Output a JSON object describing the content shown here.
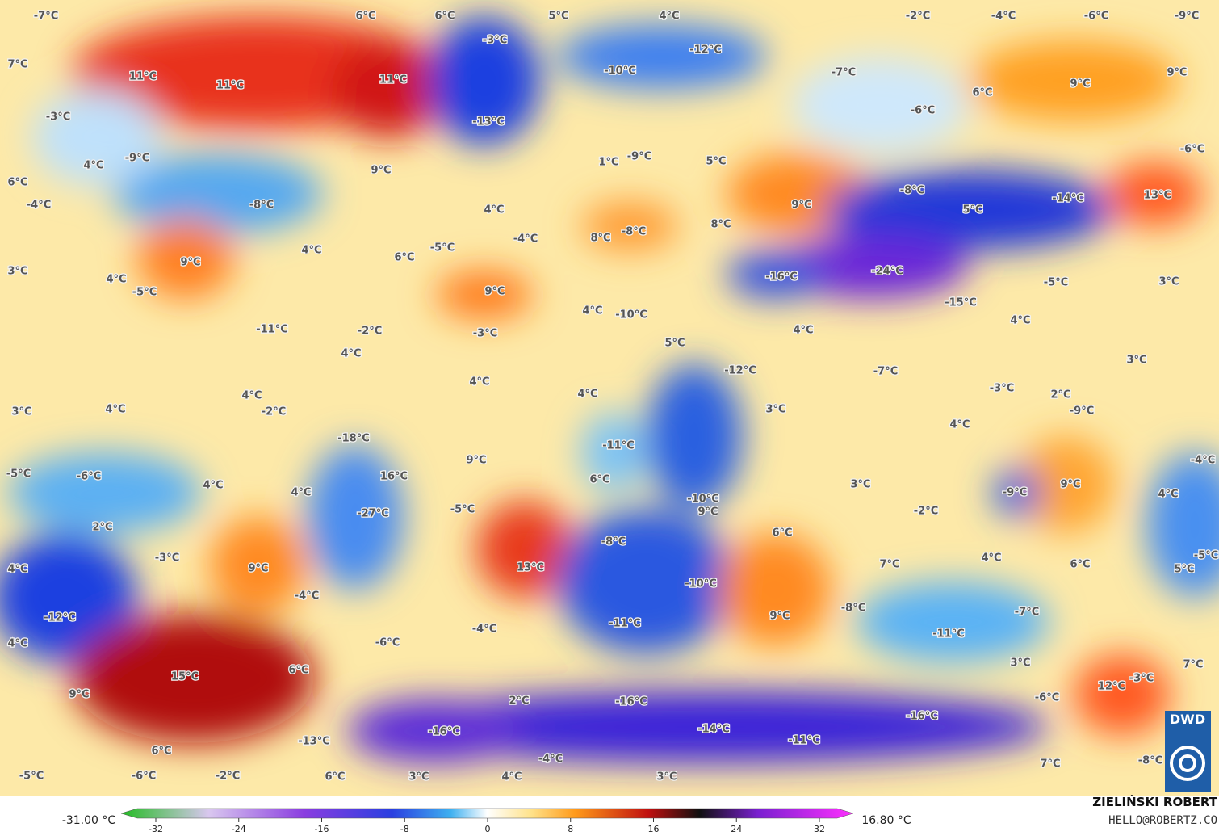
{
  "map": {
    "labels": [
      "-7°C",
      "6°C",
      "6°C",
      "5°C",
      "4°C",
      "-2°C",
      "-4°C",
      "-6°C",
      "-9°C",
      "-3°C",
      "-12°C",
      "7°C",
      "11°C",
      "11°C",
      "11°C",
      "-10°C",
      "-7°C",
      "9°C",
      "9°C",
      "6°C",
      "-6°C",
      "-3°C",
      "-13°C",
      "-9°C",
      "4°C",
      "1°C",
      "-9°C",
      "5°C",
      "-6°C",
      "6°C",
      "9°C",
      "-4°C",
      "-8°C",
      "4°C",
      "-8°C",
      "-14°C",
      "13°C",
      "9°C",
      "5°C",
      "8°C",
      "-4°C",
      "4°C",
      "-5°C",
      "6°C",
      "8°C",
      "-8°C",
      "3°C",
      "9°C",
      "4°C",
      "-5°C",
      "9°C",
      "-16°C",
      "-24°C",
      "-5°C",
      "3°C",
      "-15°C",
      "4°C",
      "-10°C",
      "4°C",
      "-11°C",
      "-2°C",
      "-3°C",
      "4°C",
      "5°C",
      "-12°C",
      "4°C",
      "3°C",
      "-7°C",
      "-3°C",
      "4°C",
      "4°C",
      "4°C",
      "2°C",
      "-9°C",
      "3°C",
      "4°C",
      "-2°C",
      "3°C",
      "4°C",
      "-18°C",
      "-11°C",
      "9°C",
      "-5°C",
      "-6°C",
      "16°C",
      "6°C",
      "4°C",
      "4°C",
      "3°C",
      "-9°C",
      "9°C",
      "4°C",
      "-4°C",
      "-10°C",
      "9°C",
      "-5°C",
      "-27°C",
      "-2°C",
      "2°C",
      "6°C",
      "-8°C",
      "-3°C",
      "4°C",
      "7°C",
      "6°C",
      "-5°C",
      "5°C",
      "4°C",
      "9°C",
      "13°C",
      "-10°C",
      "-4°C",
      "-8°C",
      "-7°C",
      "9°C",
      "-12°C",
      "-11°C",
      "-4°C",
      "-11°C",
      "-6°C",
      "4°C",
      "3°C",
      "7°C",
      "6°C",
      "15°C",
      "-3°C",
      "12°C",
      "9°C",
      "2°C",
      "-16°C",
      "-6°C",
      "-16°C",
      "-14°C",
      "-16°C",
      "-11°C",
      "-13°C",
      "6°C",
      "-4°C",
      "7°C",
      "-8°C",
      "-5°C",
      "-6°C",
      "-2°C",
      "6°C",
      "3°C",
      "4°C",
      "3°C"
    ]
  },
  "colorbar": {
    "min_label": "-31.00 °C",
    "max_label": "16.80 °C",
    "ticks": [
      -32,
      -24,
      -16,
      -8,
      0,
      8,
      16,
      24,
      32
    ]
  },
  "credit": {
    "name": "ZIELIŃSKI ROBERT",
    "contact": "HELLO@ROBERTZ.CO"
  },
  "logo": "DWD"
}
